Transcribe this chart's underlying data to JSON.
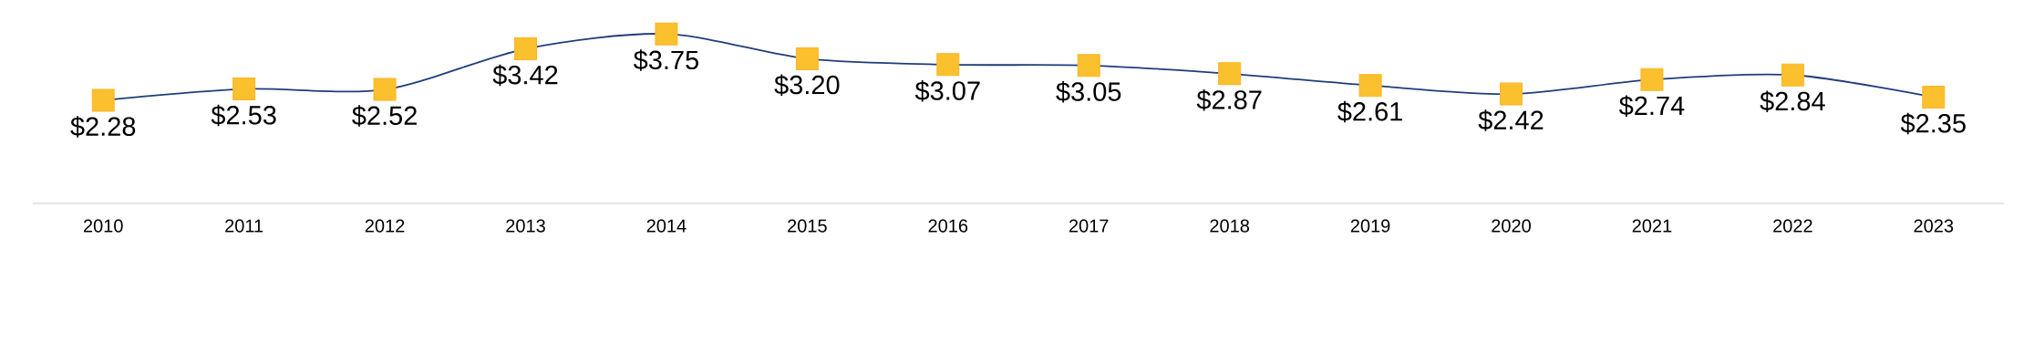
{
  "chart_data": {
    "type": "line",
    "categories": [
      "2010",
      "2011",
      "2012",
      "2013",
      "2014",
      "2015",
      "2016",
      "2017",
      "2018",
      "2019",
      "2020",
      "2021",
      "2022",
      "2023"
    ],
    "series": [
      {
        "color": "#1f3d7a",
        "values": [
          2.28,
          2.53,
          2.52,
          3.42,
          3.75,
          3.2,
          3.07,
          3.05,
          2.87,
          2.61,
          2.42,
          2.74,
          2.84,
          2.35
        ],
        "colors": [
          "#fbc02d",
          "#fbc02d",
          "#fbc02d",
          "#fbc02d",
          "#fbc02d",
          "#fbc02d",
          "#fbc02d",
          "#fbc02d",
          "#fbc02d",
          "#fbc02d",
          "#fbc02d",
          "#fbc02d",
          "#fbc02d",
          "#fbc02d"
        ],
        "value_labels": [
          "$2.28",
          "$2.53",
          "$2.52",
          "$3.42",
          "$3.75",
          "$3.20",
          "$3.07",
          "$3.05",
          "$2.87",
          "$2.61",
          "$2.42",
          "$2.74",
          "$2.84",
          "$2.35"
        ]
      }
    ],
    "marker": "square"
  }
}
